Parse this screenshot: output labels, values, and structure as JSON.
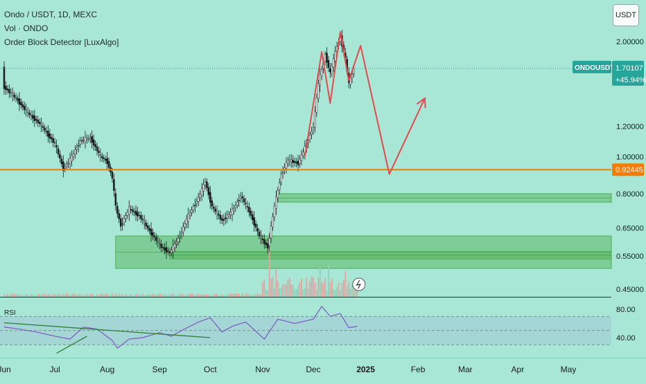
{
  "header": {
    "symbol_line": "Ondo / USDT, 1D, MEXC",
    "volume_label": "Vol · ONDO",
    "indicator_label": "Order Block Detector [LuxAlgo]",
    "unit_button": "USDT"
  },
  "price_badge": {
    "ticker": "ONDOUSDT",
    "price": "1.70107",
    "change": "+45.94%",
    "color": "#26a69a"
  },
  "level_badge": {
    "value": "0.92445",
    "color": "#f57c00"
  },
  "chart_data": {
    "type": "candlestick",
    "title": "Ondo / USDT, 1D, MEXC",
    "price_axis": {
      "scale": "log",
      "ticks": [
        2.0,
        1.2,
        1.0,
        0.8,
        0.65,
        0.55,
        0.45
      ],
      "tick_labels": [
        "2.00000",
        "1.20000",
        "1.00000",
        "0.80000",
        "0.65000",
        "0.55000",
        "0.45000"
      ]
    },
    "time_axis": {
      "labels": [
        "Jun",
        "Jul",
        "Aug",
        "Sep",
        "Oct",
        "Nov",
        "Dec",
        "2025",
        "Feb",
        "Mar",
        "Apr",
        "May"
      ],
      "start": "2024-06-01",
      "end": "2025-05-01"
    },
    "price_path": [
      [
        "2024-06-01",
        1.52
      ],
      [
        "2024-06-08",
        1.42
      ],
      [
        "2024-06-15",
        1.3
      ],
      [
        "2024-06-22",
        1.22
      ],
      [
        "2024-07-01",
        1.08
      ],
      [
        "2024-07-06",
        0.93
      ],
      [
        "2024-07-10",
        0.98
      ],
      [
        "2024-07-16",
        1.1
      ],
      [
        "2024-07-22",
        1.12
      ],
      [
        "2024-07-28",
        1.0
      ],
      [
        "2024-08-01",
        0.97
      ],
      [
        "2024-08-04",
        0.88
      ],
      [
        "2024-08-06",
        0.74
      ],
      [
        "2024-08-09",
        0.66
      ],
      [
        "2024-08-14",
        0.73
      ],
      [
        "2024-08-20",
        0.7
      ],
      [
        "2024-08-26",
        0.64
      ],
      [
        "2024-09-02",
        0.58
      ],
      [
        "2024-09-07",
        0.56
      ],
      [
        "2024-09-12",
        0.61
      ],
      [
        "2024-09-18",
        0.7
      ],
      [
        "2024-09-24",
        0.78
      ],
      [
        "2024-09-28",
        0.86
      ],
      [
        "2024-10-02",
        0.74
      ],
      [
        "2024-10-08",
        0.68
      ],
      [
        "2024-10-14",
        0.72
      ],
      [
        "2024-10-19",
        0.79
      ],
      [
        "2024-10-24",
        0.72
      ],
      [
        "2024-10-30",
        0.62
      ],
      [
        "2024-11-04",
        0.58
      ],
      [
        "2024-11-08",
        0.74
      ],
      [
        "2024-11-12",
        0.9
      ],
      [
        "2024-11-16",
        0.98
      ],
      [
        "2024-11-22",
        0.96
      ],
      [
        "2024-11-27",
        1.08
      ],
      [
        "2024-12-01",
        1.2
      ],
      [
        "2024-12-04",
        1.55
      ],
      [
        "2024-12-08",
        1.85
      ],
      [
        "2024-12-11",
        1.65
      ],
      [
        "2024-12-15",
        1.95
      ],
      [
        "2024-12-17",
        2.05
      ],
      [
        "2024-12-20",
        1.8
      ],
      [
        "2024-12-22",
        1.55
      ],
      [
        "2024-12-25",
        1.7
      ]
    ],
    "volume_spikes": [
      [
        "2024-11-05",
        1.0
      ],
      [
        "2024-11-09",
        0.5
      ],
      [
        "2024-12-05",
        0.55
      ],
      [
        "2024-12-10",
        0.6
      ],
      [
        "2024-12-20",
        0.45
      ]
    ],
    "horizontal_level": 0.92445,
    "current_price": 1.70107,
    "order_blocks": [
      {
        "from": "2024-08-06",
        "to": "2025-05-31",
        "top": 0.62,
        "bottom": 0.51,
        "color": "#4caf50"
      },
      {
        "from": "2024-09-07",
        "to": "2025-05-31",
        "top": 0.565,
        "bottom": 0.54,
        "color": "#4caf50"
      },
      {
        "from": "2024-11-10",
        "to": "2025-05-31",
        "top": 0.8,
        "bottom": 0.76,
        "color": "#4caf50"
      }
    ],
    "projection": [
      [
        "2024-11-26",
        1.0
      ],
      [
        "2024-12-06",
        1.88
      ],
      [
        "2024-12-11",
        1.38
      ],
      [
        "2024-12-17",
        2.12
      ],
      [
        "2024-12-22",
        1.58
      ],
      [
        "2024-12-29",
        1.95
      ],
      [
        "2025-01-15",
        0.9
      ],
      [
        "2025-02-05",
        1.42
      ]
    ],
    "rsi": {
      "label": "RSI",
      "ticks": [
        80,
        40
      ],
      "tick_labels": [
        "80.00",
        "40.00"
      ],
      "bands": [
        70,
        50,
        30
      ],
      "path": [
        [
          "2024-06-01",
          55
        ],
        [
          "2024-06-10",
          52
        ],
        [
          "2024-06-20",
          48
        ],
        [
          "2024-07-01",
          42
        ],
        [
          "2024-07-10",
          38
        ],
        [
          "2024-07-18",
          55
        ],
        [
          "2024-07-26",
          52
        ],
        [
          "2024-08-04",
          36
        ],
        [
          "2024-08-07",
          25
        ],
        [
          "2024-08-14",
          38
        ],
        [
          "2024-08-22",
          40
        ],
        [
          "2024-09-01",
          47
        ],
        [
          "2024-09-08",
          42
        ],
        [
          "2024-09-14",
          50
        ],
        [
          "2024-09-24",
          62
        ],
        [
          "2024-10-01",
          68
        ],
        [
          "2024-10-08",
          48
        ],
        [
          "2024-10-14",
          56
        ],
        [
          "2024-10-22",
          62
        ],
        [
          "2024-11-02",
          38
        ],
        [
          "2024-11-10",
          66
        ],
        [
          "2024-11-20",
          60
        ],
        [
          "2024-12-01",
          66
        ],
        [
          "2024-12-06",
          84
        ],
        [
          "2024-12-11",
          70
        ],
        [
          "2024-12-17",
          74
        ],
        [
          "2024-12-22",
          54
        ],
        [
          "2024-12-27",
          56
        ]
      ]
    }
  }
}
